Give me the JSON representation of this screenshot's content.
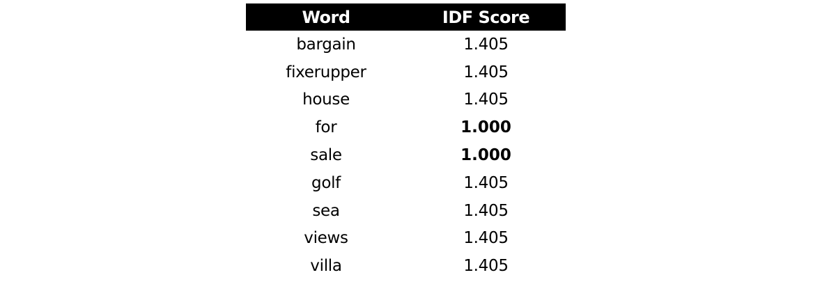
{
  "chart_data": {
    "type": "table",
    "columns": [
      "Word",
      "IDF Score"
    ],
    "rows": [
      {
        "word": "bargain",
        "score": "1.405",
        "bold": false
      },
      {
        "word": "fixerupper",
        "score": "1.405",
        "bold": false
      },
      {
        "word": "house",
        "score": "1.405",
        "bold": false
      },
      {
        "word": "for",
        "score": "1.000",
        "bold": true
      },
      {
        "word": "sale",
        "score": "1.000",
        "bold": true
      },
      {
        "word": "golf",
        "score": "1.405",
        "bold": false
      },
      {
        "word": "sea",
        "score": "1.405",
        "bold": false
      },
      {
        "word": "views",
        "score": "1.405",
        "bold": false
      },
      {
        "word": "villa",
        "score": "1.405",
        "bold": false
      }
    ],
    "colors": {
      "header_background": "#000000",
      "header_text": "#ffffff",
      "body_text": "#000000",
      "background": "#ffffff"
    }
  }
}
